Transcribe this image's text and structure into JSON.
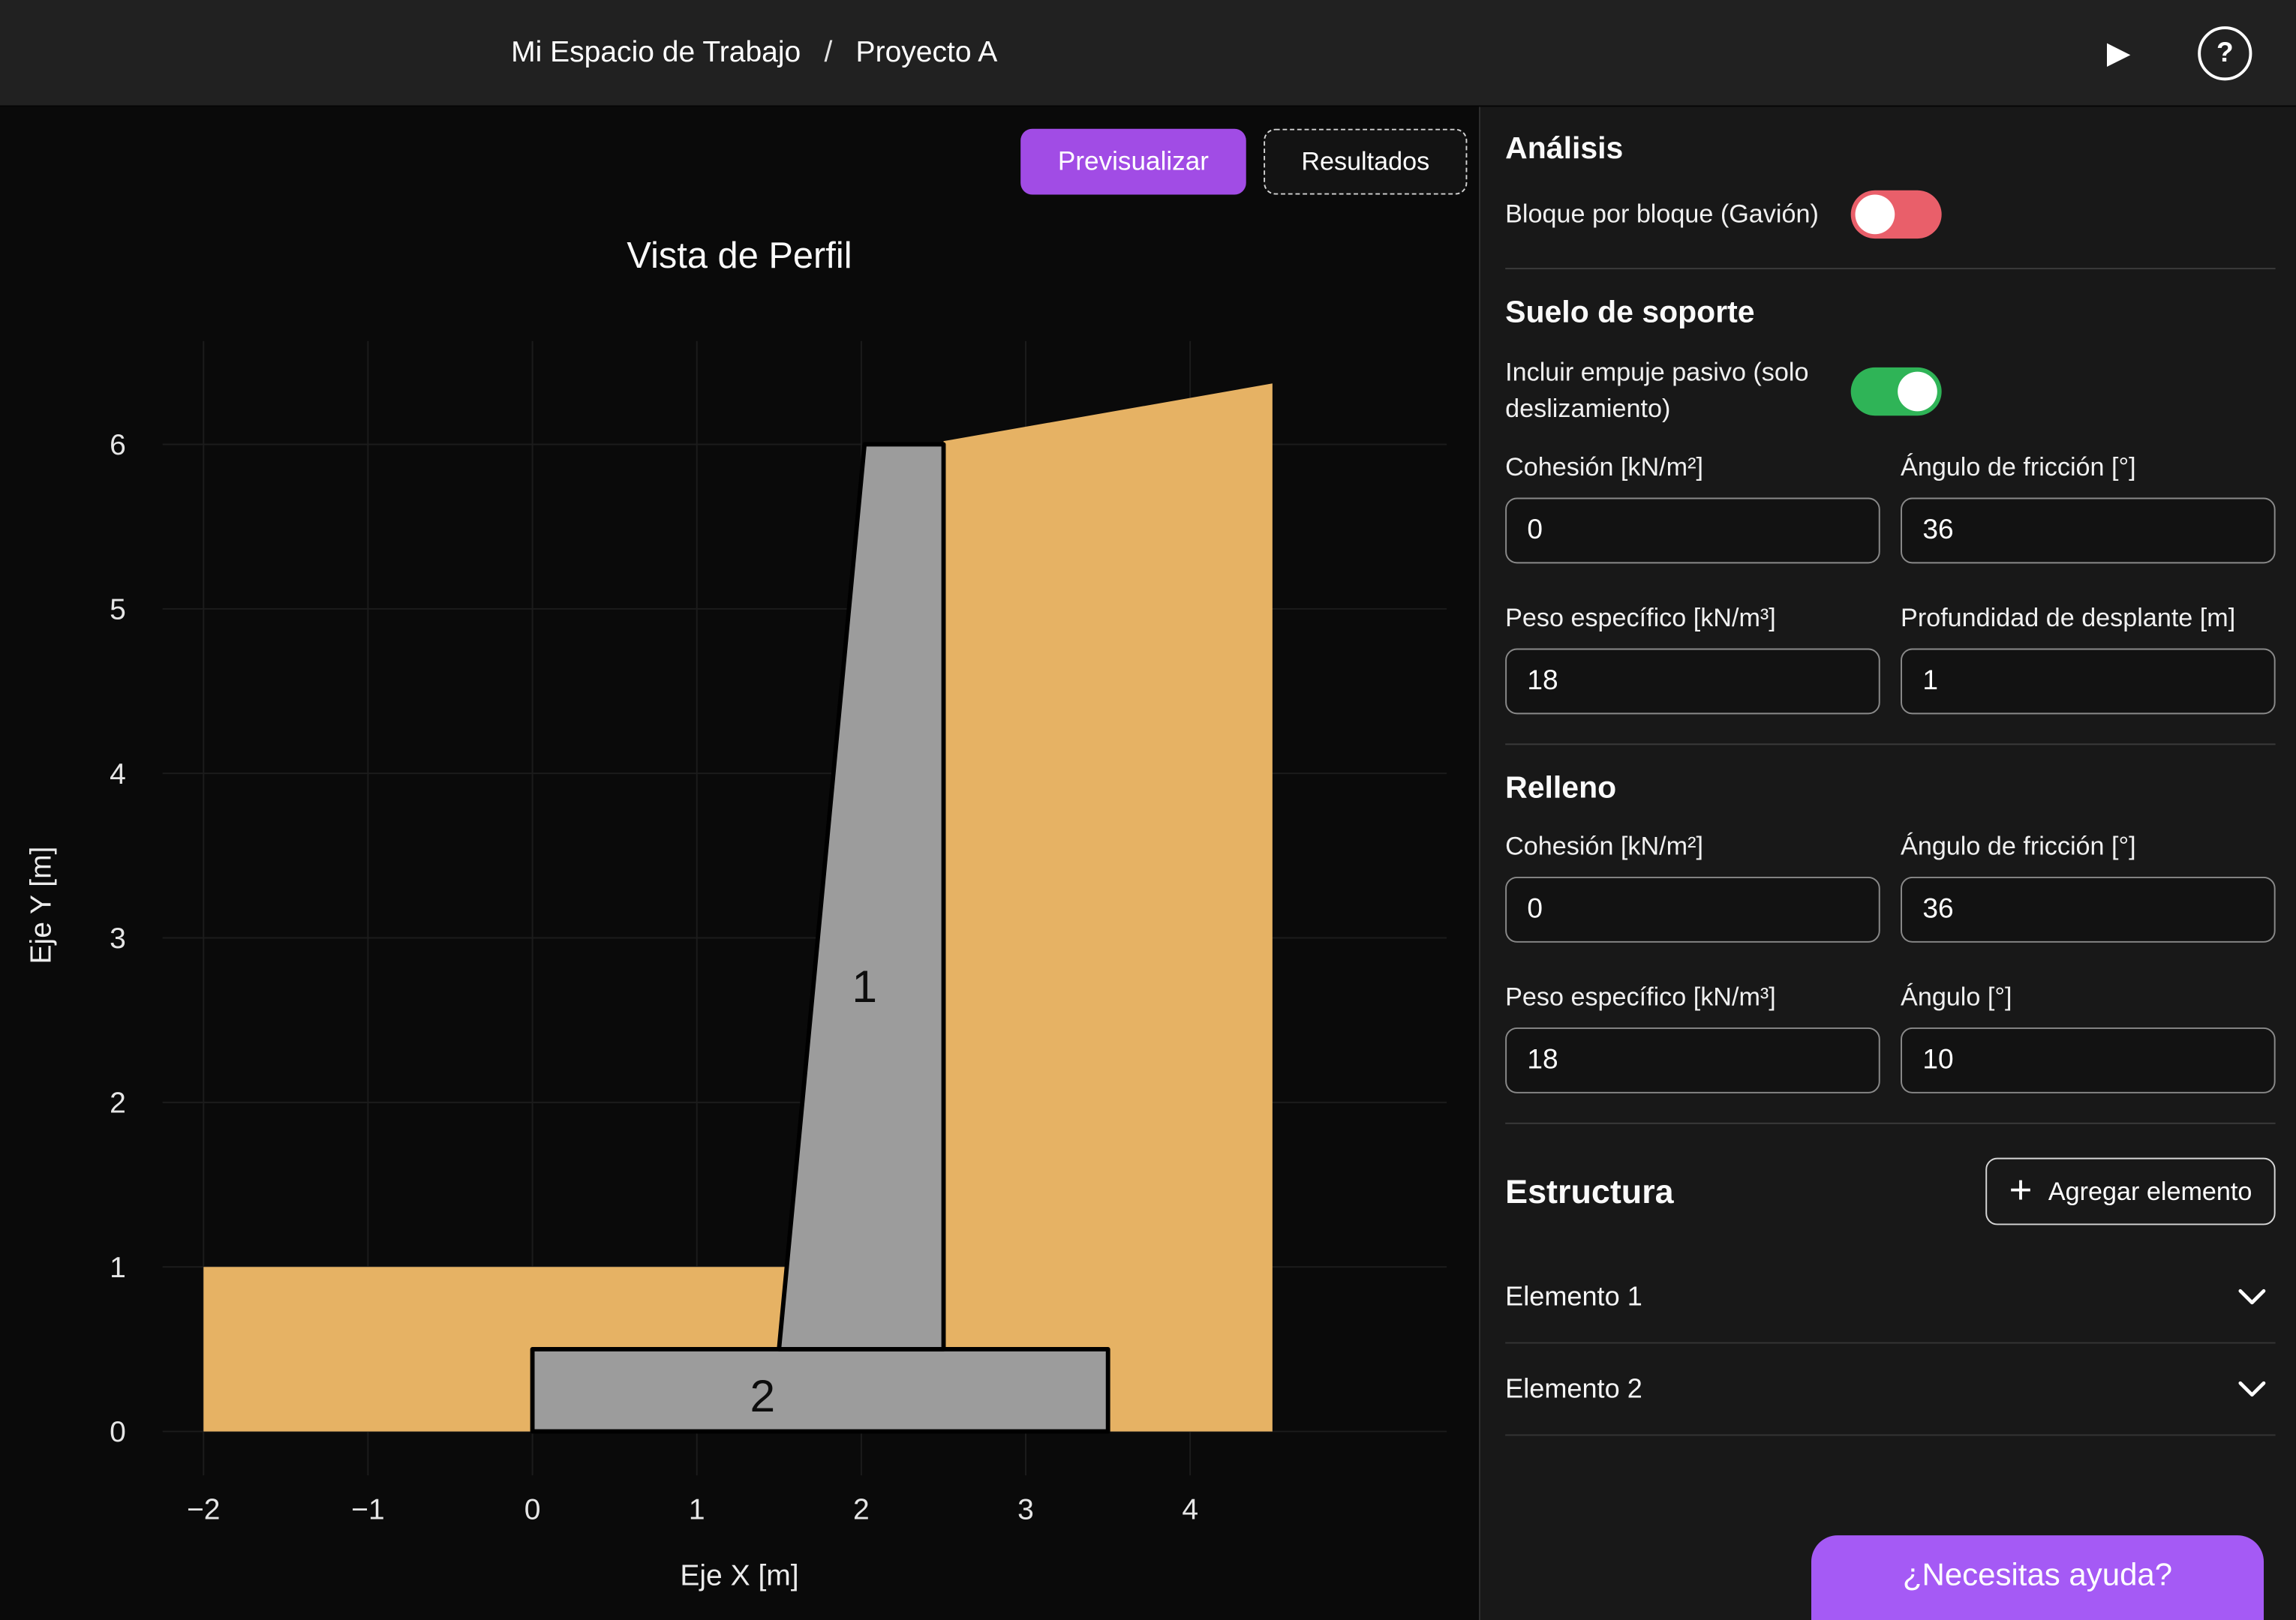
{
  "topbar": {
    "breadcrumb": {
      "workspace": "Mi Espacio de Trabajo",
      "separator": "/",
      "project": "Proyecto A"
    }
  },
  "icons": {
    "play": "▶",
    "help": "?",
    "add": "+",
    "chevron_down": "⌄"
  },
  "colors": {
    "accent_purple": "#A14CE5",
    "help_purple": "#A55AF5",
    "toggle_on_green": "#2FB457",
    "toggle_off_red": "#E95F6A",
    "soil_orange": "#E6B264",
    "concrete_gray": "#9C9C9C"
  },
  "toolbar": {
    "preview_label": "Previsualizar",
    "results_label": "Resultados"
  },
  "chart_data": {
    "type": "area",
    "title": "Vista de Perfil",
    "xlabel": "Eje X [m]",
    "ylabel": "Eje Y [m]",
    "xlim": [
      -2.4,
      5.6
    ],
    "ylim": [
      -0.6,
      6.6
    ],
    "xticks": [
      -2,
      -1,
      0,
      1,
      2,
      3,
      4
    ],
    "yticks": [
      0,
      1,
      2,
      3,
      4,
      5,
      6
    ],
    "grid": true,
    "shapes": [
      {
        "name": "left-soil",
        "color": "#E6B264",
        "stroke": "none",
        "stroke_width": 0,
        "points": [
          [
            -2,
            0
          ],
          [
            1.5,
            0
          ],
          [
            1.5,
            0.5
          ],
          [
            1.548,
            1
          ],
          [
            -2,
            1
          ]
        ]
      },
      {
        "name": "right-backfill",
        "color": "#E6B264",
        "stroke": "none",
        "stroke_width": 0,
        "points": [
          [
            2.5,
            0.5
          ],
          [
            2.5,
            6.02
          ],
          [
            4.5,
            6.37
          ],
          [
            4.5,
            0
          ],
          [
            3.5,
            0
          ],
          [
            3.5,
            0.5
          ]
        ]
      },
      {
        "name": "footing-element-2",
        "color": "#9C9C9C",
        "stroke": "#000000",
        "stroke_width": 3,
        "points": [
          [
            0,
            0
          ],
          [
            3.5,
            0
          ],
          [
            3.5,
            0.5
          ],
          [
            0,
            0.5
          ]
        ]
      },
      {
        "name": "stem-element-1",
        "color": "#9C9C9C",
        "stroke": "#000000",
        "stroke_width": 3,
        "points": [
          [
            1.5,
            0.5
          ],
          [
            2.02,
            6
          ],
          [
            2.5,
            6
          ],
          [
            2.5,
            0.5
          ]
        ]
      }
    ],
    "labels": [
      {
        "text": "1",
        "x": 2.02,
        "y": 2.61
      },
      {
        "text": "2",
        "x": 1.4,
        "y": 0.12
      }
    ]
  },
  "panel": {
    "analysis": {
      "title": "Análisis",
      "block_toggle_label": "Bloque por bloque (Gavión)",
      "block_toggle_state": "off"
    },
    "support_soil": {
      "title": "Suelo de soporte",
      "passive_toggle_label": "Incluir empuje pasivo (solo deslizamiento)",
      "passive_toggle_state": "on",
      "fields": [
        {
          "label": "Cohesión [kN/m²]",
          "value": "0"
        },
        {
          "label": "Ángulo de fricción [°]",
          "value": "36"
        },
        {
          "label": "Peso específico [kN/m³]",
          "value": "18"
        },
        {
          "label": "Profundidad de desplante [m]",
          "value": "1"
        }
      ]
    },
    "backfill": {
      "title": "Relleno",
      "fields": [
        {
          "label": "Cohesión [kN/m²]",
          "value": "0"
        },
        {
          "label": "Ángulo de fricción [°]",
          "value": "36"
        },
        {
          "label": "Peso específico  [kN/m³]",
          "value": "18"
        },
        {
          "label": "Ángulo [°]",
          "value": "10"
        }
      ]
    },
    "structure": {
      "title": "Estructura",
      "add_button": "Agregar elemento",
      "elements": [
        {
          "label": "Elemento 1"
        },
        {
          "label": "Elemento 2"
        }
      ]
    }
  },
  "help_button": {
    "label": "¿Necesitas ayuda?"
  }
}
